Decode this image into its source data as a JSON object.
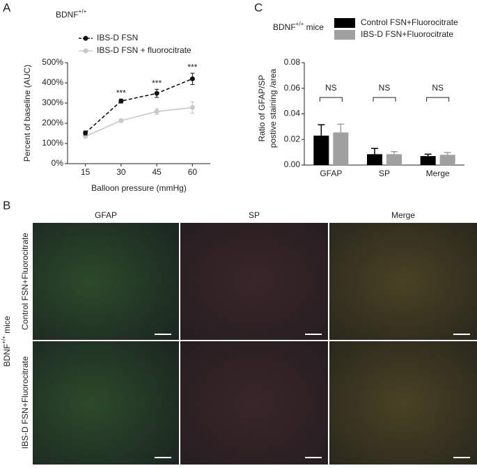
{
  "panels": {
    "a": "A",
    "b": "B",
    "c": "C",
    "b_columns": [
      "GFAP",
      "SP",
      "Merge"
    ],
    "b_rows": [
      "Control FSN+Fluorocitrate",
      "IBS-D FSN+Fluorocitrate"
    ],
    "b_side": {
      "text": "BDNF",
      "superscript": "+/+",
      "rest": " mice"
    }
  },
  "chart_data": [
    {
      "type": "line",
      "title": "BDNF",
      "title_superscript": "+/+",
      "x_label": "Balloon pressure (mmHg)",
      "y_label": "Percent of baseline (AUC)",
      "categories": [
        "15",
        "30",
        "45",
        "60"
      ],
      "series": [
        {
          "name": "IBS-D FSN",
          "color": "#111111",
          "line_style": "dashed",
          "values": [
            152,
            310,
            348,
            420
          ],
          "errors": [
            10,
            10,
            20,
            28
          ]
        },
        {
          "name": "IBS-D FSN + fluorocitrate",
          "color": "#c8c8c8",
          "line_style": "solid",
          "values": [
            135,
            213,
            258,
            278
          ],
          "errors": [
            8,
            8,
            15,
            28
          ]
        }
      ],
      "annotations": [
        null,
        "***",
        "***",
        "***"
      ],
      "ylim": [
        0,
        500
      ],
      "yticks": [
        {
          "value": 0,
          "label": "0%"
        },
        {
          "value": 100,
          "label": "100%"
        },
        {
          "value": 200,
          "label": "200%"
        },
        {
          "value": 300,
          "label": "300%"
        },
        {
          "value": 400,
          "label": "400%"
        },
        {
          "value": 500,
          "label": "500%"
        }
      ]
    },
    {
      "type": "bar",
      "title": "BDNF",
      "title_superscript": "+/+",
      "title_rest": " mice",
      "y_label": [
        "Ratio of GFAP/SP",
        "postive staining /area"
      ],
      "categories": [
        "GFAP",
        "SP",
        "Merge"
      ],
      "series": [
        {
          "name": "Control FSN+Fluorocitrate",
          "color": "#000000",
          "values": [
            0.023,
            0.0085,
            0.007
          ],
          "errors": [
            0.0085,
            0.0045,
            0.0015
          ]
        },
        {
          "name": "IBS-D FSN+Fluorocitrate",
          "color": "#a0a0a0",
          "values": [
            0.0255,
            0.0085,
            0.008
          ],
          "errors": [
            0.0065,
            0.002,
            0.0018
          ]
        }
      ],
      "annotations": [
        "NS",
        "NS",
        "NS"
      ],
      "ylim": [
        0,
        0.08
      ],
      "yticks": [
        {
          "value": 0,
          "label": "0.00"
        },
        {
          "value": 0.02,
          "label": "0.02"
        },
        {
          "value": 0.04,
          "label": "0.04"
        },
        {
          "value": 0.06,
          "label": "0.06"
        },
        {
          "value": 0.08,
          "label": "0.08"
        }
      ]
    }
  ]
}
